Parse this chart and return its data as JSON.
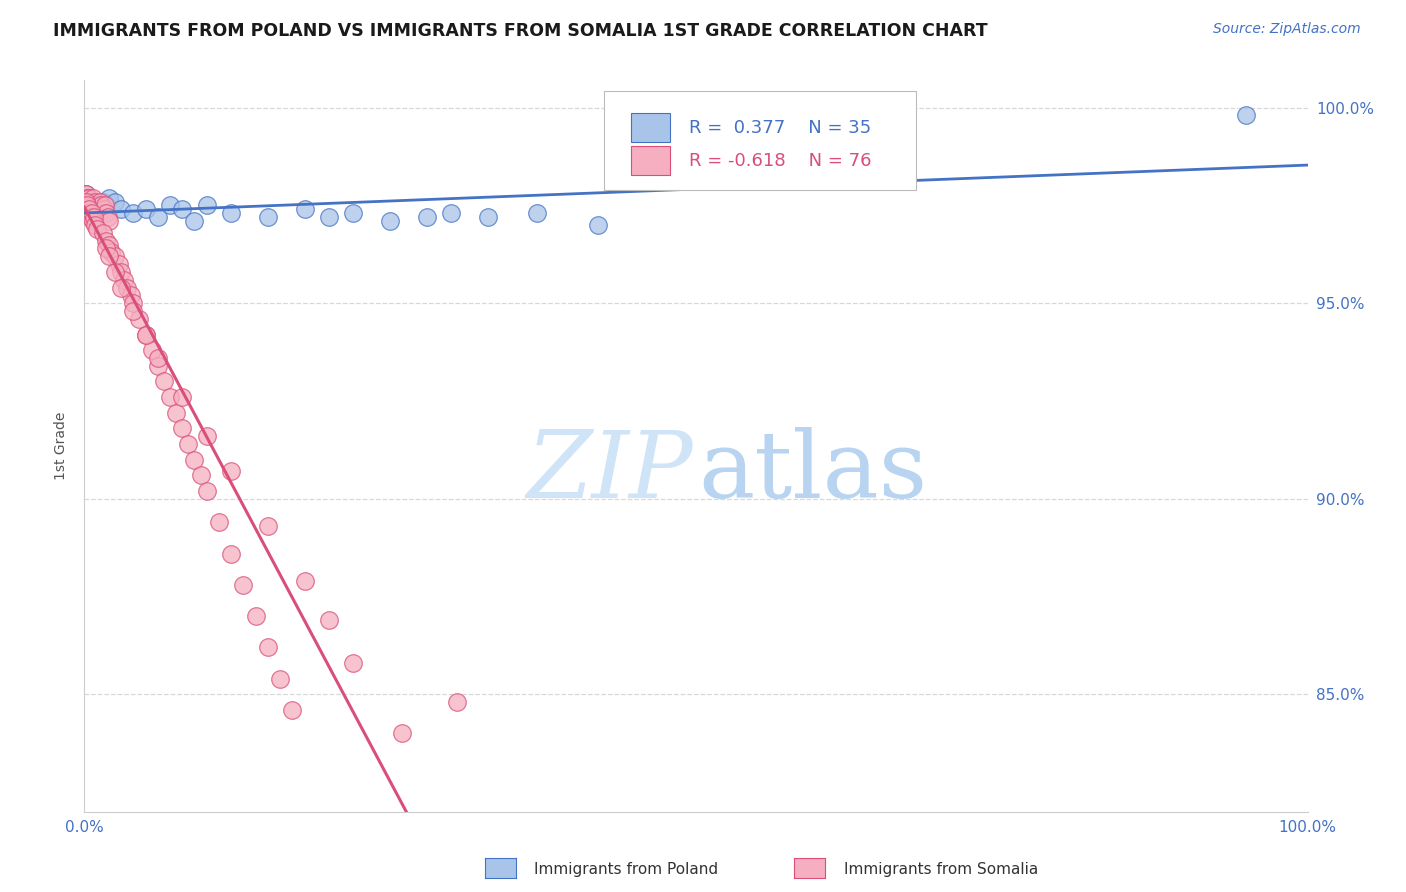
{
  "title": "IMMIGRANTS FROM POLAND VS IMMIGRANTS FROM SOMALIA 1ST GRADE CORRELATION CHART",
  "source": "Source: ZipAtlas.com",
  "ylabel": "1st Grade",
  "R_poland": 0.377,
  "N_poland": 35,
  "R_somalia": -0.618,
  "N_somalia": 76,
  "legend_label_poland": "Immigrants from Poland",
  "legend_label_somalia": "Immigrants from Somalia",
  "color_poland": "#a8c4e8",
  "color_somalia": "#f5afc0",
  "trendline_poland_color": "#4472c4",
  "trendline_somalia_color": "#d94f7a",
  "trendline_dashed_color": "#cccccc",
  "title_color": "#1a1a1a",
  "source_color": "#4472c4",
  "axis_tick_color": "#4472c4",
  "ylabel_color": "#555555",
  "background_color": "#ffffff",
  "grid_color": "#d8d8d8",
  "watermark_zip_color": "#d0e4f7",
  "watermark_atlas_color": "#b8d4f0",
  "xlim": [
    0.0,
    1.0
  ],
  "ylim": [
    0.82,
    1.007
  ],
  "ytick_positions": [
    0.85,
    0.9,
    0.95,
    1.0
  ],
  "ytick_labels": [
    "85.0%",
    "90.0%",
    "95.0%",
    "100.0%"
  ],
  "poland_x": [
    0.001,
    0.002,
    0.003,
    0.004,
    0.005,
    0.006,
    0.007,
    0.008,
    0.009,
    0.01,
    0.012,
    0.015,
    0.018,
    0.02,
    0.025,
    0.03,
    0.04,
    0.05,
    0.06,
    0.07,
    0.08,
    0.09,
    0.1,
    0.12,
    0.15,
    0.18,
    0.2,
    0.22,
    0.25,
    0.28,
    0.3,
    0.33,
    0.37,
    0.42,
    0.95
  ],
  "poland_y": [
    0.978,
    0.976,
    0.977,
    0.975,
    0.976,
    0.974,
    0.975,
    0.973,
    0.974,
    0.975,
    0.974,
    0.976,
    0.975,
    0.977,
    0.976,
    0.974,
    0.973,
    0.974,
    0.972,
    0.975,
    0.974,
    0.971,
    0.975,
    0.973,
    0.972,
    0.974,
    0.972,
    0.973,
    0.971,
    0.972,
    0.973,
    0.972,
    0.973,
    0.97,
    0.998
  ],
  "somalia_x": [
    0.001,
    0.002,
    0.003,
    0.004,
    0.005,
    0.006,
    0.007,
    0.008,
    0.009,
    0.01,
    0.011,
    0.012,
    0.013,
    0.014,
    0.015,
    0.016,
    0.017,
    0.018,
    0.019,
    0.02,
    0.001,
    0.002,
    0.003,
    0.004,
    0.005,
    0.006,
    0.007,
    0.008,
    0.009,
    0.01,
    0.015,
    0.018,
    0.02,
    0.022,
    0.025,
    0.028,
    0.03,
    0.032,
    0.035,
    0.038,
    0.04,
    0.045,
    0.05,
    0.055,
    0.06,
    0.065,
    0.07,
    0.075,
    0.08,
    0.085,
    0.09,
    0.095,
    0.1,
    0.11,
    0.12,
    0.13,
    0.14,
    0.15,
    0.16,
    0.17,
    0.018,
    0.02,
    0.025,
    0.03,
    0.04,
    0.05,
    0.06,
    0.08,
    0.1,
    0.12,
    0.15,
    0.18,
    0.2,
    0.22,
    0.26,
    0.305
  ],
  "somalia_y": [
    0.978,
    0.977,
    0.976,
    0.977,
    0.975,
    0.976,
    0.977,
    0.975,
    0.976,
    0.974,
    0.975,
    0.974,
    0.976,
    0.975,
    0.973,
    0.974,
    0.975,
    0.973,
    0.972,
    0.971,
    0.976,
    0.975,
    0.973,
    0.974,
    0.972,
    0.973,
    0.971,
    0.972,
    0.97,
    0.969,
    0.968,
    0.966,
    0.965,
    0.963,
    0.962,
    0.96,
    0.958,
    0.956,
    0.954,
    0.952,
    0.95,
    0.946,
    0.942,
    0.938,
    0.934,
    0.93,
    0.926,
    0.922,
    0.918,
    0.914,
    0.91,
    0.906,
    0.902,
    0.894,
    0.886,
    0.878,
    0.87,
    0.862,
    0.854,
    0.846,
    0.964,
    0.962,
    0.958,
    0.954,
    0.948,
    0.942,
    0.936,
    0.926,
    0.916,
    0.907,
    0.893,
    0.879,
    0.869,
    0.858,
    0.84,
    0.848
  ]
}
